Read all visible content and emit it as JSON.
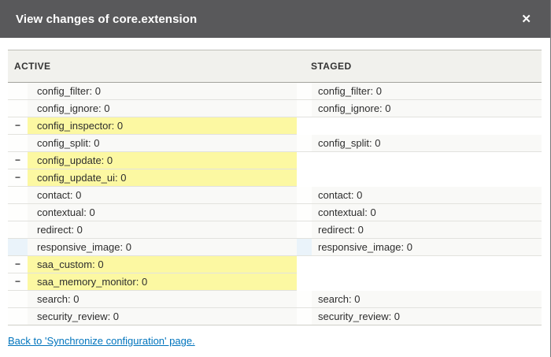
{
  "dialog": {
    "title": "View changes of core.extension",
    "close_glyph": "✕"
  },
  "table": {
    "columns": [
      "ACTIVE",
      "STAGED"
    ],
    "markers": {
      "removed": "−"
    },
    "rows": [
      {
        "active": "config_filter: 0",
        "staged": "config_filter: 0",
        "change": "same"
      },
      {
        "active": "config_ignore: 0",
        "staged": "config_ignore: 0",
        "change": "same"
      },
      {
        "active": "config_inspector: 0",
        "staged": "",
        "change": "removed"
      },
      {
        "active": "config_split: 0",
        "staged": "config_split: 0",
        "change": "same"
      },
      {
        "active": "config_update: 0",
        "staged": "",
        "change": "removed"
      },
      {
        "active": "config_update_ui: 0",
        "staged": "",
        "change": "removed"
      },
      {
        "active": "contact: 0",
        "staged": "contact: 0",
        "change": "same"
      },
      {
        "active": "contextual: 0",
        "staged": "contextual: 0",
        "change": "same"
      },
      {
        "active": "redirect: 0",
        "staged": "redirect: 0",
        "change": "same"
      },
      {
        "active": "responsive_image: 0",
        "staged": "responsive_image: 0",
        "change": "context"
      },
      {
        "active": "saa_custom: 0",
        "staged": "",
        "change": "removed"
      },
      {
        "active": "saa_memory_monitor: 0",
        "staged": "",
        "change": "removed"
      },
      {
        "active": "search: 0",
        "staged": "search: 0",
        "change": "same"
      },
      {
        "active": "security_review: 0",
        "staged": "security_review: 0",
        "change": "same"
      }
    ]
  },
  "footer": {
    "back_link": "Back to 'Synchronize configuration' page."
  },
  "colors": {
    "titlebar_bg": "#59595b",
    "removed_bg": "#fcf8a2",
    "context_marker_bg": "#eaf3fa",
    "link": "#0074bd",
    "header_row_bg": "#f1f1ed",
    "row_bg": "#f9f9f7"
  }
}
